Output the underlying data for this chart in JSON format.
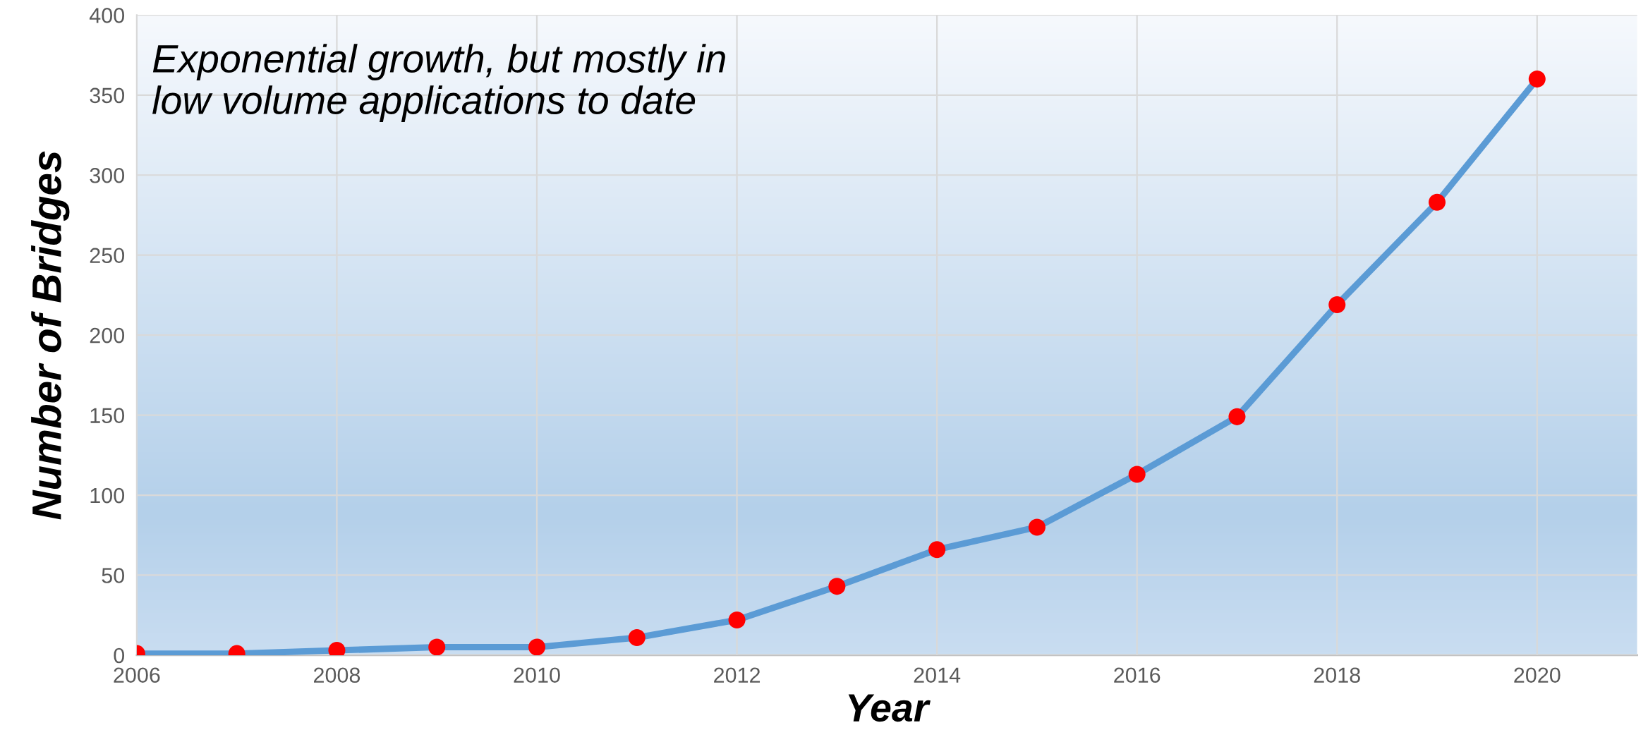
{
  "chart_data": {
    "type": "line",
    "xlabel": "Year",
    "ylabel": "Number of Bridges",
    "annotations": [
      "Exponential growth, but mostly in\nlow volume applications to date"
    ],
    "x": [
      2006,
      2007,
      2008,
      2009,
      2010,
      2011,
      2012,
      2013,
      2014,
      2015,
      2016,
      2017,
      2018,
      2019,
      2020
    ],
    "series": [
      {
        "color": "#5b9bd5",
        "colors": [
          "#ff0000",
          "#ff0000",
          "#ff0000",
          "#ff0000",
          "#ff0000",
          "#ff0000",
          "#ff0000",
          "#ff0000",
          "#ff0000",
          "#ff0000",
          "#ff0000",
          "#ff0000",
          "#ff0000",
          "#ff0000",
          "#ff0000"
        ],
        "values": [
          1,
          1,
          3,
          5,
          5,
          11,
          22,
          43,
          66,
          80,
          113,
          149,
          219,
          283,
          360
        ]
      }
    ],
    "xlim": [
      2006,
      2021
    ],
    "xticks": [
      2006,
      2008,
      2010,
      2012,
      2014,
      2016,
      2018,
      2020
    ],
    "ylim": [
      0,
      400
    ],
    "yticks": [
      0,
      50,
      100,
      150,
      200,
      250,
      300,
      350,
      400
    ],
    "grid": true,
    "marker": "circle",
    "line_style": "solid"
  }
}
